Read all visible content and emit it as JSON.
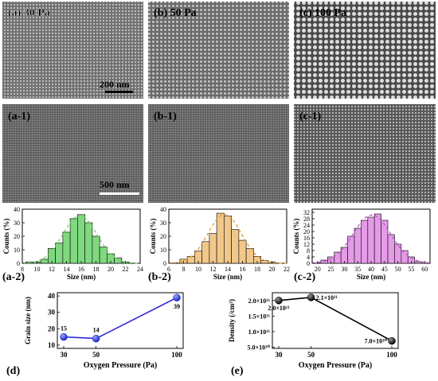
{
  "sem_panels": [
    {
      "label": "(a) 30 Pa",
      "scale_bar": "200 nm"
    },
    {
      "label": "(b) 50 Pa"
    },
    {
      "label": "(c) 100 Pa"
    },
    {
      "label": "(a-1)",
      "scale_bar": "500 nm"
    },
    {
      "label": "(b-1)"
    },
    {
      "label": "(c-1)"
    }
  ],
  "chart_data": [
    {
      "type": "bar",
      "panel_label": "(a-2)",
      "xlabel": "Size (nm)",
      "ylabel": "Counts (%)",
      "xlim": [
        8,
        24
      ],
      "ylim": [
        0,
        40
      ],
      "xticks": [
        8,
        10,
        12,
        14,
        16,
        18,
        20,
        22,
        24
      ],
      "yticks": [
        0,
        10,
        20,
        30,
        40
      ],
      "bin_width": 1,
      "bins": [
        9,
        10,
        11,
        12,
        13,
        14,
        15,
        16,
        17,
        18,
        19,
        20,
        21,
        22
      ],
      "values": [
        1,
        1,
        3,
        11,
        15,
        23,
        33,
        36,
        30,
        20,
        12,
        7,
        4,
        1
      ],
      "fill_color": "#7fd97f",
      "fit_color": "#7ccf6a"
    },
    {
      "type": "bar",
      "panel_label": "(b-2)",
      "xlabel": "Size (nm)",
      "ylabel": "Counts (%)",
      "xlim": [
        6,
        22
      ],
      "ylim": [
        0,
        40
      ],
      "xticks": [
        6,
        8,
        10,
        12,
        14,
        16,
        18,
        20,
        22
      ],
      "yticks": [
        0,
        10,
        20,
        30,
        40
      ],
      "bin_width": 1,
      "bins": [
        7,
        8,
        9,
        10,
        11,
        12,
        13,
        14,
        15,
        16,
        17,
        18,
        19,
        20
      ],
      "values": [
        0,
        3,
        5,
        9,
        16,
        22,
        37,
        35,
        25,
        17,
        11,
        5,
        2,
        1
      ],
      "fill_color": "#f2c88a",
      "fit_color": "#e59a2b"
    },
    {
      "type": "bar",
      "panel_label": "(c-2)",
      "xlabel": "Size (nm)",
      "ylabel": "Counts (%)",
      "xlim": [
        18,
        62
      ],
      "ylim": [
        0,
        34
      ],
      "xticks": [
        20,
        25,
        30,
        35,
        40,
        45,
        50,
        55,
        60
      ],
      "yticks": [
        0,
        4,
        8,
        12,
        16,
        20,
        24,
        28,
        32
      ],
      "bin_width": 2.5,
      "bins": [
        22.5,
        25,
        27.5,
        30,
        32.5,
        35,
        37.5,
        40,
        42.5,
        45,
        47.5,
        50,
        52.5,
        55,
        57.5
      ],
      "values": [
        2,
        4,
        7,
        10,
        17,
        22,
        27,
        29,
        31,
        27,
        18,
        12,
        8,
        4,
        1
      ],
      "fill_color": "#e59be8",
      "fit_color": "#c24fc8"
    },
    {
      "type": "line",
      "panel_label": "(d)",
      "xlabel": "Oxygen Pressure (Pa)",
      "ylabel": "Grain size (nm)",
      "categories": [
        "30",
        "50",
        "100"
      ],
      "values": [
        15,
        14,
        39
      ],
      "point_labels": [
        "15",
        "14",
        "39"
      ],
      "yticks": [
        10,
        20,
        30,
        40
      ],
      "ylim": [
        8,
        42
      ],
      "line_color": "#2a2ad8"
    },
    {
      "type": "line",
      "panel_label": "(e)",
      "xlabel": "Oxygen Pressure (Pa)",
      "ylabel": "Density (/cm²)",
      "categories": [
        "30",
        "50",
        "100"
      ],
      "values": [
        200000000000.0,
        210000000000.0,
        70000000000.0
      ],
      "point_labels": [
        "2.0×10¹¹",
        "2.1×10¹¹",
        "7.0×10¹⁰"
      ],
      "ytick_labels": [
        "5.0×10¹⁰",
        "1.0×10¹¹",
        "1.5×10¹¹",
        "2.0×10¹¹"
      ],
      "yticks": [
        50000000000.0,
        100000000000.0,
        150000000000.0,
        200000000000.0
      ],
      "ylim": [
        46000000000.0,
        225000000000.0
      ],
      "line_color": "#000000"
    }
  ]
}
